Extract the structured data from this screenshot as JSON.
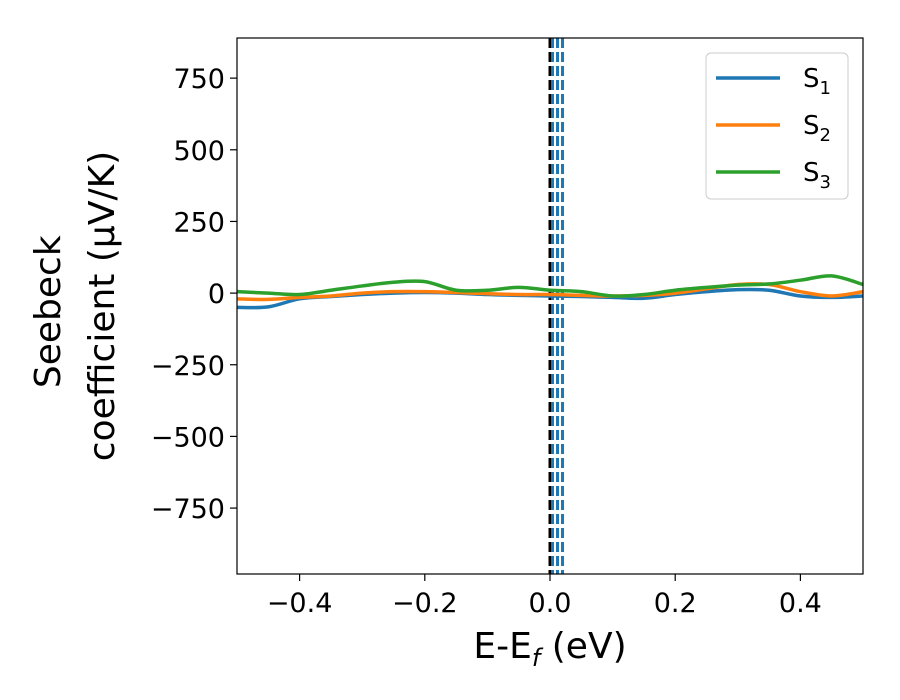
{
  "chart_data": {
    "type": "line",
    "xlabel": {
      "main": "E-E",
      "sub": "f",
      "unit": " (eV)"
    },
    "ylabel": {
      "line1": "Seebeck",
      "line2": "coefficient  (μV/K)"
    },
    "xlim": [
      -0.5,
      0.5
    ],
    "ylim": [
      -980,
      890
    ],
    "xticks": [
      {
        "value": -0.4,
        "label": "−0.4"
      },
      {
        "value": -0.2,
        "label": "−0.2"
      },
      {
        "value": 0.0,
        "label": "0.0"
      },
      {
        "value": 0.2,
        "label": "0.2"
      },
      {
        "value": 0.4,
        "label": "0.4"
      }
    ],
    "yticks": [
      {
        "value": 750,
        "label": "750"
      },
      {
        "value": 500,
        "label": "500"
      },
      {
        "value": 250,
        "label": "250"
      },
      {
        "value": 0,
        "label": "0"
      },
      {
        "value": -250,
        "label": "−250"
      },
      {
        "value": -500,
        "label": "−500"
      },
      {
        "value": -750,
        "label": "−750"
      }
    ],
    "x": [
      -0.5,
      -0.45,
      -0.4,
      -0.35,
      -0.3,
      -0.25,
      -0.2,
      -0.15,
      -0.1,
      -0.05,
      0.0,
      0.05,
      0.1,
      0.15,
      0.2,
      0.25,
      0.3,
      0.35,
      0.4,
      0.45,
      0.5
    ],
    "series": [
      {
        "name": "S",
        "sub": "1",
        "color": "#1f77b4",
        "values": [
          -50,
          -48,
          -20,
          -12,
          -5,
          0,
          2,
          0,
          -5,
          -8,
          -10,
          -12,
          -15,
          -18,
          -5,
          5,
          12,
          10,
          -10,
          -15,
          -10
        ]
      },
      {
        "name": "S",
        "sub": "2",
        "color": "#ff7f0e",
        "values": [
          -20,
          -22,
          -15,
          -10,
          0,
          5,
          5,
          2,
          -2,
          -5,
          -5,
          -8,
          -10,
          -8,
          0,
          15,
          30,
          30,
          5,
          -10,
          5
        ]
      },
      {
        "name": "S",
        "sub": "3",
        "color": "#2ca02c",
        "values": [
          5,
          0,
          -5,
          10,
          25,
          38,
          40,
          10,
          10,
          20,
          10,
          5,
          -10,
          -5,
          10,
          20,
          28,
          32,
          45,
          60,
          30
        ]
      }
    ],
    "vlines": [
      {
        "x": 0.0,
        "color": "#000000",
        "style": "dashed"
      },
      {
        "x": 0.004,
        "color": "#1f77b4",
        "style": "dashed"
      },
      {
        "x": 0.012,
        "color": "#1f77b4",
        "style": "dashed"
      },
      {
        "x": 0.02,
        "color": "#1f77b4",
        "style": "dashed"
      }
    ],
    "legend": "upper-right",
    "grid": false
  }
}
